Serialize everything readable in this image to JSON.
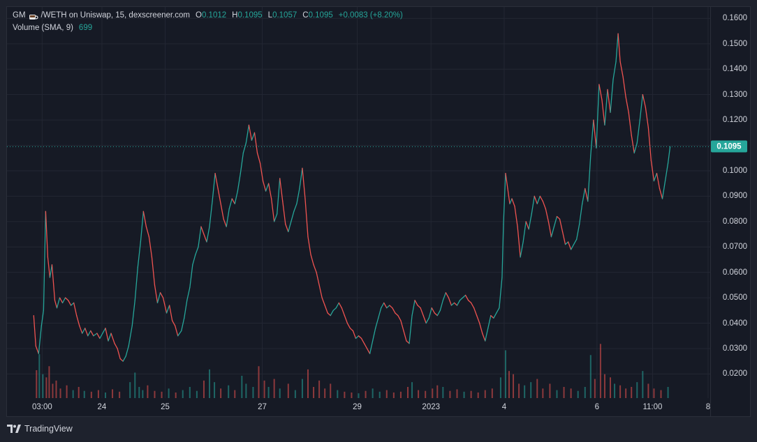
{
  "legend": {
    "symbol": "GM",
    "pair": "/WETH on Uniswap, 15, dexscreener.com",
    "open_key": "O",
    "open": "0.1012",
    "high_key": "H",
    "high": "0.1095",
    "low_key": "L",
    "low": "0.1057",
    "close_key": "C",
    "close": "0.1095",
    "change": "+0.0083 (+8.20%)",
    "volume_label": "Volume (SMA, 9)",
    "volume_value": "699",
    "coffee_icon": "coffee-cup-icon"
  },
  "brand": {
    "name": "TradingView",
    "logo_icon": "tradingview-logo-icon"
  },
  "colors": {
    "background": "#161a25",
    "grid": "#232733",
    "up": "#26a69a",
    "down": "#ef5350",
    "text": "#d1d4dc",
    "last_price": "#26a69a"
  },
  "chart_data": {
    "type": "line",
    "title": "GM /WETH on Uniswap, 15, dexscreener.com",
    "y_ticks": [
      0.02,
      0.03,
      0.04,
      0.05,
      0.06,
      0.07,
      0.08,
      0.09,
      0.1,
      0.11,
      0.12,
      0.13,
      0.14,
      0.15,
      0.16
    ],
    "y_tick_labels": [
      "0.0200",
      "0.0300",
      "0.0400",
      "0.0500",
      "0.0600",
      "0.0700",
      "0.0800",
      "0.0900",
      "0.1000",
      "0.1100",
      "0.1200",
      "0.1300",
      "0.1400",
      "0.1500",
      "0.1600"
    ],
    "ylim": [
      0.0105,
      0.1645
    ],
    "xlim": [
      0,
      100
    ],
    "x_ticks": [
      {
        "x": 5.0,
        "label": "03:00"
      },
      {
        "x": 13.5,
        "label": "24"
      },
      {
        "x": 22.5,
        "label": "25"
      },
      {
        "x": 36.3,
        "label": "27"
      },
      {
        "x": 49.8,
        "label": "29"
      },
      {
        "x": 60.3,
        "label": "2023"
      },
      {
        "x": 70.7,
        "label": "4"
      },
      {
        "x": 83.9,
        "label": "6"
      },
      {
        "x": 91.8,
        "label": "11:00"
      },
      {
        "x": 99.7,
        "label": "8"
      }
    ],
    "last_price": 0.1095,
    "last_price_label": "0.1095",
    "price_series": [
      [
        3.8,
        0.043
      ],
      [
        4.1,
        0.031
      ],
      [
        4.5,
        0.028
      ],
      [
        4.9,
        0.039
      ],
      [
        5.2,
        0.045
      ],
      [
        5.5,
        0.084
      ],
      [
        5.8,
        0.066
      ],
      [
        6.1,
        0.058
      ],
      [
        6.4,
        0.063
      ],
      [
        6.8,
        0.049
      ],
      [
        7.1,
        0.046
      ],
      [
        7.5,
        0.05
      ],
      [
        7.9,
        0.048
      ],
      [
        8.3,
        0.05
      ],
      [
        8.7,
        0.049
      ],
      [
        9.1,
        0.047
      ],
      [
        9.5,
        0.048
      ],
      [
        9.9,
        0.043
      ],
      [
        10.3,
        0.039
      ],
      [
        10.7,
        0.036
      ],
      [
        11.1,
        0.038
      ],
      [
        11.5,
        0.035
      ],
      [
        11.9,
        0.037
      ],
      [
        12.3,
        0.035
      ],
      [
        12.8,
        0.036
      ],
      [
        13.2,
        0.034
      ],
      [
        13.6,
        0.036
      ],
      [
        14.0,
        0.038
      ],
      [
        14.4,
        0.033
      ],
      [
        14.8,
        0.036
      ],
      [
        15.3,
        0.032
      ],
      [
        15.7,
        0.03
      ],
      [
        16.1,
        0.026
      ],
      [
        16.5,
        0.025
      ],
      [
        16.9,
        0.027
      ],
      [
        17.3,
        0.031
      ],
      [
        17.8,
        0.039
      ],
      [
        18.2,
        0.049
      ],
      [
        18.6,
        0.062
      ],
      [
        19.0,
        0.072
      ],
      [
        19.4,
        0.084
      ],
      [
        19.8,
        0.078
      ],
      [
        20.2,
        0.074
      ],
      [
        20.6,
        0.066
      ],
      [
        21.0,
        0.055
      ],
      [
        21.4,
        0.048
      ],
      [
        21.8,
        0.052
      ],
      [
        22.2,
        0.05
      ],
      [
        22.7,
        0.044
      ],
      [
        23.1,
        0.047
      ],
      [
        23.5,
        0.041
      ],
      [
        23.9,
        0.039
      ],
      [
        24.3,
        0.035
      ],
      [
        24.8,
        0.037
      ],
      [
        25.2,
        0.042
      ],
      [
        25.6,
        0.049
      ],
      [
        26.0,
        0.054
      ],
      [
        26.4,
        0.063
      ],
      [
        26.8,
        0.067
      ],
      [
        27.2,
        0.07
      ],
      [
        27.6,
        0.078
      ],
      [
        28.0,
        0.075
      ],
      [
        28.4,
        0.072
      ],
      [
        28.8,
        0.078
      ],
      [
        29.2,
        0.088
      ],
      [
        29.6,
        0.099
      ],
      [
        30.0,
        0.093
      ],
      [
        30.4,
        0.087
      ],
      [
        30.8,
        0.081
      ],
      [
        31.2,
        0.078
      ],
      [
        31.6,
        0.085
      ],
      [
        32.0,
        0.089
      ],
      [
        32.4,
        0.087
      ],
      [
        32.8,
        0.092
      ],
      [
        33.2,
        0.099
      ],
      [
        33.6,
        0.107
      ],
      [
        34.0,
        0.111
      ],
      [
        34.4,
        0.118
      ],
      [
        34.8,
        0.112
      ],
      [
        35.2,
        0.115
      ],
      [
        35.6,
        0.107
      ],
      [
        36.0,
        0.103
      ],
      [
        36.4,
        0.096
      ],
      [
        36.8,
        0.092
      ],
      [
        37.2,
        0.095
      ],
      [
        37.6,
        0.089
      ],
      [
        38.0,
        0.08
      ],
      [
        38.4,
        0.083
      ],
      [
        38.8,
        0.097
      ],
      [
        39.2,
        0.088
      ],
      [
        39.6,
        0.079
      ],
      [
        40.0,
        0.076
      ],
      [
        40.4,
        0.08
      ],
      [
        40.8,
        0.084
      ],
      [
        41.2,
        0.087
      ],
      [
        41.6,
        0.093
      ],
      [
        42.0,
        0.101
      ],
      [
        42.4,
        0.089
      ],
      [
        42.8,
        0.074
      ],
      [
        43.2,
        0.067
      ],
      [
        43.6,
        0.063
      ],
      [
        44.0,
        0.06
      ],
      [
        44.4,
        0.055
      ],
      [
        44.8,
        0.05
      ],
      [
        45.2,
        0.047
      ],
      [
        45.6,
        0.044
      ],
      [
        46.0,
        0.043
      ],
      [
        46.4,
        0.045
      ],
      [
        46.8,
        0.046
      ],
      [
        47.2,
        0.048
      ],
      [
        47.6,
        0.046
      ],
      [
        48.0,
        0.043
      ],
      [
        48.4,
        0.04
      ],
      [
        48.8,
        0.038
      ],
      [
        49.2,
        0.037
      ],
      [
        49.6,
        0.034
      ],
      [
        50.0,
        0.035
      ],
      [
        50.4,
        0.034
      ],
      [
        50.8,
        0.032
      ],
      [
        51.2,
        0.03
      ],
      [
        51.6,
        0.028
      ],
      [
        52.0,
        0.033
      ],
      [
        52.4,
        0.038
      ],
      [
        52.8,
        0.042
      ],
      [
        53.2,
        0.046
      ],
      [
        53.6,
        0.048
      ],
      [
        54.0,
        0.046
      ],
      [
        54.4,
        0.047
      ],
      [
        54.8,
        0.046
      ],
      [
        55.2,
        0.044
      ],
      [
        55.6,
        0.043
      ],
      [
        56.0,
        0.041
      ],
      [
        56.4,
        0.037
      ],
      [
        56.8,
        0.033
      ],
      [
        57.2,
        0.032
      ],
      [
        57.6,
        0.043
      ],
      [
        58.0,
        0.049
      ],
      [
        58.4,
        0.047
      ],
      [
        58.8,
        0.046
      ],
      [
        59.2,
        0.043
      ],
      [
        59.6,
        0.04
      ],
      [
        60.0,
        0.042
      ],
      [
        60.4,
        0.046
      ],
      [
        60.8,
        0.044
      ],
      [
        61.2,
        0.043
      ],
      [
        61.6,
        0.045
      ],
      [
        62.0,
        0.049
      ],
      [
        62.4,
        0.052
      ],
      [
        62.8,
        0.05
      ],
      [
        63.2,
        0.047
      ],
      [
        63.6,
        0.048
      ],
      [
        64.0,
        0.047
      ],
      [
        64.4,
        0.049
      ],
      [
        64.8,
        0.05
      ],
      [
        65.2,
        0.051
      ],
      [
        65.6,
        0.049
      ],
      [
        66.0,
        0.048
      ],
      [
        66.4,
        0.046
      ],
      [
        66.8,
        0.043
      ],
      [
        67.2,
        0.04
      ],
      [
        67.6,
        0.036
      ],
      [
        68.0,
        0.033
      ],
      [
        68.4,
        0.038
      ],
      [
        68.8,
        0.043
      ],
      [
        69.2,
        0.042
      ],
      [
        69.6,
        0.044
      ],
      [
        70.0,
        0.046
      ],
      [
        70.4,
        0.058
      ],
      [
        70.6,
        0.079
      ],
      [
        70.9,
        0.099
      ],
      [
        71.2,
        0.093
      ],
      [
        71.5,
        0.087
      ],
      [
        71.8,
        0.089
      ],
      [
        72.2,
        0.086
      ],
      [
        72.6,
        0.078
      ],
      [
        73.0,
        0.066
      ],
      [
        73.4,
        0.072
      ],
      [
        73.8,
        0.08
      ],
      [
        74.2,
        0.077
      ],
      [
        74.6,
        0.083
      ],
      [
        75.0,
        0.09
      ],
      [
        75.4,
        0.087
      ],
      [
        75.8,
        0.09
      ],
      [
        76.2,
        0.088
      ],
      [
        76.6,
        0.085
      ],
      [
        77.0,
        0.08
      ],
      [
        77.4,
        0.074
      ],
      [
        77.8,
        0.078
      ],
      [
        78.2,
        0.082
      ],
      [
        78.6,
        0.081
      ],
      [
        79.0,
        0.076
      ],
      [
        79.4,
        0.071
      ],
      [
        79.8,
        0.072
      ],
      [
        80.2,
        0.069
      ],
      [
        80.6,
        0.071
      ],
      [
        81.0,
        0.073
      ],
      [
        81.4,
        0.079
      ],
      [
        81.8,
        0.087
      ],
      [
        82.2,
        0.093
      ],
      [
        82.6,
        0.088
      ],
      [
        83.0,
        0.106
      ],
      [
        83.4,
        0.12
      ],
      [
        83.8,
        0.109
      ],
      [
        84.2,
        0.134
      ],
      [
        84.6,
        0.128
      ],
      [
        85.0,
        0.118
      ],
      [
        85.4,
        0.132
      ],
      [
        85.8,
        0.123
      ],
      [
        86.2,
        0.136
      ],
      [
        86.6,
        0.143
      ],
      [
        86.9,
        0.154
      ],
      [
        87.2,
        0.143
      ],
      [
        87.6,
        0.137
      ],
      [
        88.0,
        0.129
      ],
      [
        88.4,
        0.123
      ],
      [
        88.8,
        0.114
      ],
      [
        89.2,
        0.107
      ],
      [
        89.6,
        0.111
      ],
      [
        90.0,
        0.12
      ],
      [
        90.4,
        0.13
      ],
      [
        90.8,
        0.125
      ],
      [
        91.2,
        0.117
      ],
      [
        91.6,
        0.104
      ],
      [
        92.0,
        0.096
      ],
      [
        92.4,
        0.099
      ],
      [
        92.8,
        0.093
      ],
      [
        93.2,
        0.089
      ],
      [
        93.6,
        0.096
      ],
      [
        94.0,
        0.103
      ],
      [
        94.3,
        0.1095
      ]
    ],
    "volume_series": [
      [
        4.2,
        35
      ],
      [
        4.6,
        55
      ],
      [
        5.1,
        30
      ],
      [
        5.6,
        26
      ],
      [
        6.0,
        40
      ],
      [
        6.5,
        18
      ],
      [
        7.0,
        22
      ],
      [
        7.6,
        12
      ],
      [
        8.5,
        16
      ],
      [
        9.4,
        10
      ],
      [
        10.2,
        14
      ],
      [
        11.0,
        9
      ],
      [
        12.0,
        8
      ],
      [
        13.0,
        10
      ],
      [
        14.0,
        7
      ],
      [
        15.0,
        11
      ],
      [
        16.0,
        8
      ],
      [
        17.5,
        20
      ],
      [
        18.2,
        32
      ],
      [
        18.8,
        14
      ],
      [
        19.3,
        10
      ],
      [
        20.0,
        16
      ],
      [
        21.0,
        9
      ],
      [
        22.0,
        8
      ],
      [
        23.0,
        12
      ],
      [
        24.0,
        7
      ],
      [
        25.0,
        10
      ],
      [
        26.0,
        14
      ],
      [
        27.0,
        9
      ],
      [
        28.0,
        22
      ],
      [
        28.8,
        36
      ],
      [
        29.5,
        20
      ],
      [
        30.4,
        12
      ],
      [
        31.5,
        16
      ],
      [
        32.4,
        10
      ],
      [
        33.4,
        28
      ],
      [
        34.0,
        18
      ],
      [
        35.0,
        14
      ],
      [
        35.8,
        40
      ],
      [
        36.6,
        22
      ],
      [
        37.2,
        14
      ],
      [
        38.0,
        24
      ],
      [
        38.8,
        12
      ],
      [
        40.0,
        18
      ],
      [
        41.0,
        10
      ],
      [
        42.0,
        24
      ],
      [
        42.8,
        36
      ],
      [
        43.6,
        14
      ],
      [
        44.4,
        22
      ],
      [
        45.2,
        12
      ],
      [
        46.0,
        18
      ],
      [
        47.0,
        10
      ],
      [
        48.0,
        8
      ],
      [
        49.0,
        7
      ],
      [
        50.0,
        6
      ],
      [
        51.0,
        9
      ],
      [
        52.0,
        12
      ],
      [
        53.0,
        8
      ],
      [
        54.0,
        10
      ],
      [
        55.0,
        7
      ],
      [
        56.0,
        8
      ],
      [
        57.0,
        14
      ],
      [
        57.6,
        20
      ],
      [
        58.5,
        10
      ],
      [
        59.5,
        9
      ],
      [
        60.5,
        12
      ],
      [
        61.2,
        16
      ],
      [
        62.0,
        14
      ],
      [
        63.0,
        9
      ],
      [
        64.0,
        11
      ],
      [
        65.0,
        8
      ],
      [
        66.0,
        9
      ],
      [
        67.0,
        7
      ],
      [
        68.0,
        10
      ],
      [
        69.0,
        12
      ],
      [
        70.2,
        26
      ],
      [
        70.9,
        60
      ],
      [
        71.4,
        34
      ],
      [
        72.0,
        30
      ],
      [
        72.8,
        18
      ],
      [
        73.6,
        16
      ],
      [
        74.5,
        20
      ],
      [
        75.4,
        24
      ],
      [
        76.2,
        12
      ],
      [
        77.2,
        18
      ],
      [
        78.2,
        10
      ],
      [
        79.2,
        14
      ],
      [
        80.2,
        12
      ],
      [
        81.2,
        9
      ],
      [
        82.2,
        14
      ],
      [
        83.0,
        54
      ],
      [
        83.6,
        24
      ],
      [
        84.4,
        68
      ],
      [
        85.0,
        30
      ],
      [
        85.8,
        26
      ],
      [
        86.4,
        18
      ],
      [
        87.2,
        16
      ],
      [
        88.0,
        12
      ],
      [
        88.8,
        14
      ],
      [
        89.6,
        20
      ],
      [
        90.4,
        34
      ],
      [
        91.2,
        18
      ],
      [
        92.0,
        12
      ],
      [
        93.0,
        10
      ],
      [
        94.0,
        14
      ]
    ]
  }
}
